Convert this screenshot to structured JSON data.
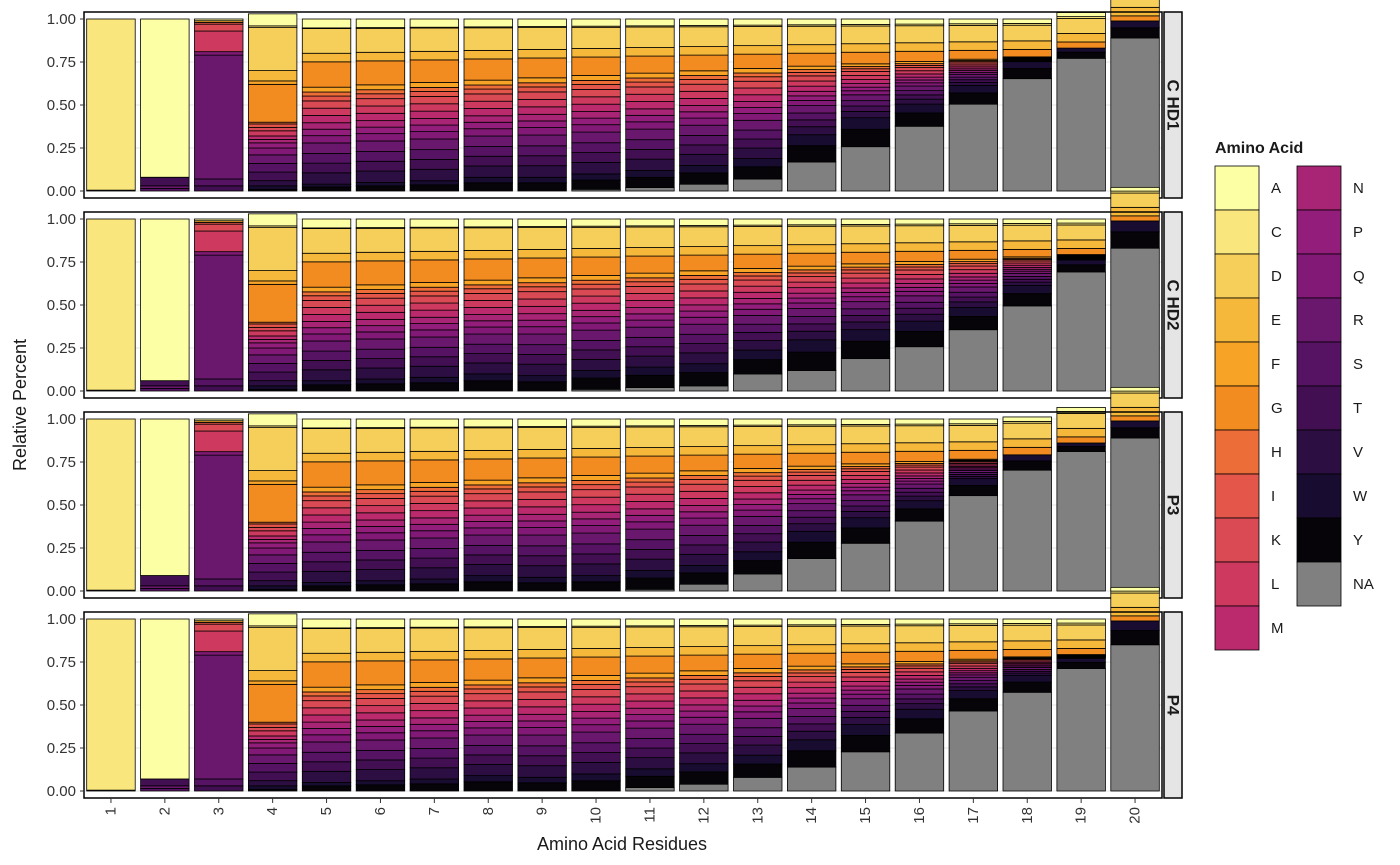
{
  "chart_data": {
    "type": "bar",
    "stacked": true,
    "xlabel": "Amino Acid Residues",
    "ylabel": "Relative Percent",
    "ylim": [
      0,
      1
    ],
    "y_ticks": [
      "0.00",
      "0.25",
      "0.50",
      "0.75",
      "1.00"
    ],
    "categories": [
      "1",
      "2",
      "3",
      "4",
      "5",
      "6",
      "7",
      "8",
      "9",
      "10",
      "11",
      "12",
      "13",
      "14",
      "15",
      "16",
      "17",
      "18",
      "19",
      "20"
    ],
    "legend": {
      "title": "Amino Acid",
      "position": "right",
      "entries": [
        "A",
        "C",
        "D",
        "E",
        "F",
        "G",
        "H",
        "I",
        "K",
        "L",
        "M",
        "N",
        "P",
        "Q",
        "R",
        "S",
        "T",
        "V",
        "W",
        "Y",
        "NA"
      ]
    },
    "colors": {
      "A": "#FCFFA4",
      "C": "#F9E67C",
      "D": "#F6CF5B",
      "E": "#F5B83A",
      "F": "#F6A326",
      "G": "#F28B20",
      "H": "#EC6D37",
      "I": "#E4564A",
      "K": "#DA4A54",
      "L": "#CE3A5F",
      "M": "#BC2A6E",
      "N": "#A82474",
      "P": "#931D7A",
      "Q": "#821977",
      "R": "#6A176E",
      "S": "#561364",
      "T": "#420F53",
      "V": "#2C0E42",
      "W": "#180C30",
      "Y": "#060408",
      "NA": "#808080"
    },
    "panels": [
      {
        "label": "C HD1",
        "na": [
          0,
          0,
          0,
          0,
          0,
          0,
          0,
          0,
          0,
          0.01,
          0.02,
          0.04,
          0.07,
          0.17,
          0.26,
          0.38,
          0.51,
          0.66,
          0.78,
          0.9
        ],
        "hi": [
          0,
          0.08,
          0.02,
          0.06,
          0.04,
          0.05,
          0.06,
          0.08,
          0.08,
          0.09,
          0.1,
          0.11,
          0.12,
          0.16,
          0.17,
          0.13,
          0.11,
          0.1,
          0.06,
          0.1
        ]
      },
      {
        "label": "C HD2",
        "na": [
          0,
          0,
          0,
          0,
          0,
          0,
          0,
          0,
          0,
          0.01,
          0.02,
          0.03,
          0.1,
          0.12,
          0.19,
          0.26,
          0.36,
          0.5,
          0.7,
          0.84
        ],
        "hi": [
          0,
          0.06,
          0.02,
          0.1,
          0.06,
          0.07,
          0.08,
          0.1,
          0.09,
          0.11,
          0.12,
          0.13,
          0.14,
          0.18,
          0.17,
          0.15,
          0.13,
          0.12,
          0.07,
          0.16
        ]
      },
      {
        "label": "P3",
        "na": [
          0,
          0,
          0,
          0,
          0,
          0,
          0,
          0,
          0,
          0,
          0.01,
          0.04,
          0.1,
          0.19,
          0.28,
          0.41,
          0.56,
          0.71,
          0.82,
          0.9
        ],
        "hi": [
          0,
          0.09,
          0.02,
          0.07,
          0.05,
          0.06,
          0.07,
          0.09,
          0.08,
          0.09,
          0.11,
          0.11,
          0.13,
          0.16,
          0.15,
          0.12,
          0.1,
          0.09,
          0.05,
          0.1
        ]
      },
      {
        "label": "P4",
        "na": [
          0,
          0,
          0,
          0,
          0,
          0,
          0,
          0,
          0,
          0,
          0.02,
          0.04,
          0.08,
          0.14,
          0.23,
          0.34,
          0.47,
          0.58,
          0.72,
          0.86
        ],
        "hi": [
          0,
          0.07,
          0.02,
          0.08,
          0.05,
          0.06,
          0.07,
          0.09,
          0.08,
          0.1,
          0.11,
          0.12,
          0.13,
          0.16,
          0.16,
          0.14,
          0.12,
          0.1,
          0.06,
          0.14
        ]
      }
    ]
  }
}
